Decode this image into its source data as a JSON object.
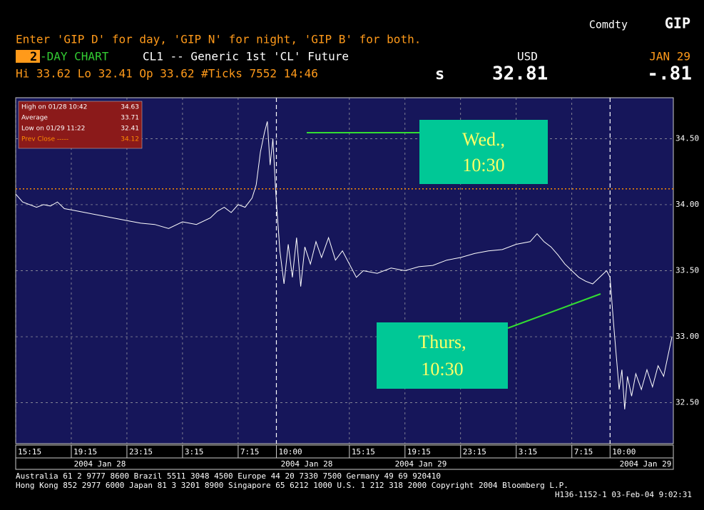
{
  "header": {
    "market": "Comdty",
    "code": "GIP",
    "instructions": "Enter 'GIP D' for day, 'GIP N' for night, 'GIP B' for both.",
    "period_num": "2",
    "period_label": "-DAY CHART",
    "security": "CL1 -- Generic 1st 'CL' Future",
    "currency": "USD",
    "date": "JAN 29",
    "stats": "Hi  33.62 Lo  32.41 Op  33.62 #Ticks 7552  14:46",
    "flag": "s",
    "last": "32.81",
    "change": "-.81"
  },
  "chart_data": {
    "type": "line",
    "color": "#ffffff",
    "x": [
      0,
      0.5,
      1,
      1.5,
      2,
      2.5,
      3,
      3.5,
      4,
      5,
      6,
      7,
      8,
      9,
      10,
      11,
      12,
      13,
      14,
      14.5,
      15,
      15.5,
      16,
      16.5,
      17,
      17.3,
      17.6,
      17.9,
      18.1,
      18.3,
      18.5,
      18.7,
      19,
      19.3,
      19.6,
      19.9,
      20.2,
      20.5,
      20.8,
      21.2,
      21.6,
      22,
      22.5,
      23,
      23.5,
      24,
      24.5,
      25,
      26,
      27,
      28,
      29,
      30,
      31,
      32,
      33,
      34,
      35,
      36,
      37,
      37.5,
      38,
      38.5,
      39,
      39.5,
      40,
      40.5,
      41,
      41.5,
      42,
      42.5,
      42.75,
      43,
      43.2,
      43.4,
      43.6,
      43.8,
      44,
      44.3,
      44.6,
      45,
      45.4,
      45.8,
      46.2,
      46.6,
      47,
      47.2
    ],
    "values": [
      34.08,
      34.02,
      34.0,
      33.98,
      34.0,
      33.99,
      34.02,
      33.97,
      33.96,
      33.94,
      33.92,
      33.9,
      33.88,
      33.86,
      33.85,
      33.82,
      33.87,
      33.85,
      33.9,
      33.95,
      33.98,
      33.94,
      34.0,
      33.98,
      34.05,
      34.15,
      34.4,
      34.55,
      34.63,
      34.3,
      34.5,
      34.1,
      33.65,
      33.4,
      33.7,
      33.45,
      33.75,
      33.38,
      33.68,
      33.55,
      33.72,
      33.6,
      33.75,
      33.58,
      33.65,
      33.55,
      33.45,
      33.5,
      33.48,
      33.52,
      33.5,
      33.53,
      33.54,
      33.58,
      33.6,
      33.63,
      33.65,
      33.66,
      33.7,
      33.72,
      33.78,
      33.72,
      33.68,
      33.62,
      33.55,
      33.5,
      33.45,
      33.42,
      33.4,
      33.45,
      33.5,
      33.45,
      33.1,
      32.85,
      32.6,
      32.75,
      32.45,
      32.7,
      32.55,
      32.72,
      32.6,
      32.75,
      32.62,
      32.78,
      32.7,
      32.9,
      33.0
    ],
    "xlim": [
      0,
      47.3
    ],
    "xticks": [
      {
        "value": 0,
        "label": "15:15"
      },
      {
        "value": 4,
        "label": "19:15"
      },
      {
        "value": 8,
        "label": "23:15"
      },
      {
        "value": 12,
        "label": "3:15"
      },
      {
        "value": 16,
        "label": "7:15"
      },
      {
        "value": 18.75,
        "label": "10:00"
      },
      {
        "value": 24,
        "label": "15:15"
      },
      {
        "value": 28,
        "label": "19:15"
      },
      {
        "value": 32,
        "label": "23:15"
      },
      {
        "value": 36,
        "label": "3:15"
      },
      {
        "value": 40,
        "label": "7:15"
      },
      {
        "value": 42.75,
        "label": "10:00"
      }
    ],
    "ylim": [
      32.19,
      34.81
    ],
    "yticks": [
      {
        "value": 32.5,
        "label": "32.50"
      },
      {
        "value": 33,
        "label": "33.00"
      },
      {
        "value": 33.5,
        "label": "33.50"
      },
      {
        "value": 34,
        "label": "34.00"
      },
      {
        "value": 34.5,
        "label": "34.50"
      }
    ],
    "grid": true,
    "date_groups": [
      "2004 Jan 28",
      "2004 Jan 28",
      "2004 Jan 29",
      "2004 Jan 29"
    ],
    "summary": [
      {
        "label": "High on 01/28 10:42",
        "value": 34.63
      },
      {
        "label": "Average",
        "value": 33.71
      },
      {
        "label": "Low on 01/29 11:22",
        "value": 32.41
      },
      {
        "label": "Prev Close -----",
        "value": 34.12
      }
    ],
    "reference_color": "#ff8c00",
    "annotations": [
      [
        "Wed.,",
        "10:30"
      ],
      [
        "Thurs,",
        "10:30"
      ]
    ]
  },
  "footer": [
    "Australia 61 2 9777 8600          Brazil 5511 3048 4500            Europe 44 20 7330 7500            Germany 49 69 920410",
    "Hong Kong 852 2977 6000 Japan 81 3 3201 8900 Singapore 65 6212 1000 U.S. 1 212 318 2000 Copyright 2004 Bloomberg L.P.",
    "H136-1152-1 03-Feb-04  9:02:31"
  ]
}
